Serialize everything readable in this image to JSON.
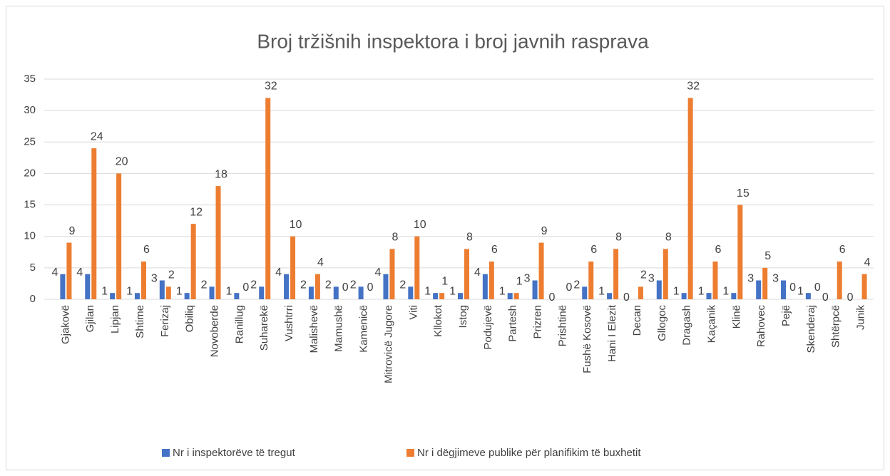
{
  "chart_data": {
    "type": "bar",
    "title": "Broj tržišnih  inspektora i broj javnih rasprava",
    "categories": [
      "Gjakovë",
      "Gjilan",
      "Lipjan",
      "Shtime",
      "Ferizaj",
      "Obiliq",
      "Novoberde",
      "Ranillug",
      "Suharekë",
      "Vushtrri",
      "Malishevë",
      "Mamushë",
      "Kamenicë",
      "Mitrovicë Jugore",
      "Viti",
      "Kllokot",
      "Istog",
      "Podujevë",
      "Partesh",
      "Prizren",
      "Prishtinë",
      "Fushë Kosovë",
      "Hani I Elezit",
      "Decan",
      "Gllogoc",
      "Dragash",
      "Kaçanik",
      "Klinë",
      "Rahovec",
      "Pejë",
      "Skenderaj",
      "Shtërpcë",
      "Junik"
    ],
    "series": [
      {
        "name": "Nr i inspektorëve të tregut",
        "color": "#4472c4",
        "values": [
          4,
          4,
          1,
          1,
          3,
          1,
          2,
          1,
          2,
          4,
          2,
          2,
          2,
          4,
          2,
          1,
          1,
          4,
          1,
          3,
          0,
          2,
          1,
          0,
          3,
          1,
          1,
          1,
          3,
          3,
          1,
          0,
          0
        ]
      },
      {
        "name": "Nr i dëgjimeve publike për planifikim të buxhetit",
        "color": "#ed7d31",
        "values": [
          9,
          24,
          20,
          6,
          2,
          12,
          18,
          0,
          32,
          10,
          4,
          0,
          0,
          8,
          10,
          1,
          8,
          6,
          1,
          9,
          0,
          6,
          8,
          2,
          8,
          32,
          6,
          15,
          5,
          0,
          0,
          6,
          4
        ]
      }
    ],
    "ylim": [
      0,
      35
    ],
    "yticks": [
      0,
      5,
      10,
      15,
      20,
      25,
      30,
      35
    ],
    "grid": true,
    "legend": "bottom"
  }
}
